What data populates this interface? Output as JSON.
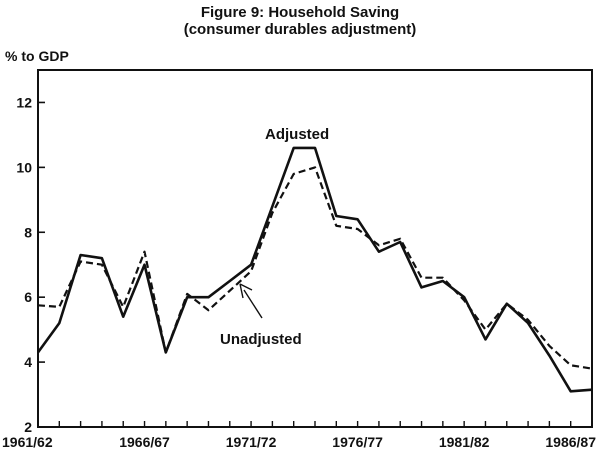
{
  "chart_data": {
    "type": "line",
    "title": "Figure 9: Household Saving",
    "subtitle": "(consumer durables adjustment)",
    "ylabel": "% to GDP",
    "xlabel": "",
    "ylim": [
      2,
      13
    ],
    "yticks": [
      2,
      4,
      6,
      8,
      10,
      12
    ],
    "xtick_labels": [
      "1961/62",
      "1966/67",
      "1971/72",
      "1976/77",
      "1981/82",
      "1986/87"
    ],
    "x": [
      "1961/62",
      "1962/63",
      "1963/64",
      "1964/65",
      "1965/66",
      "1966/67",
      "1967/68",
      "1968/69",
      "1969/70",
      "1970/71",
      "1971/72",
      "1972/73",
      "1973/74",
      "1974/75",
      "1975/76",
      "1976/77",
      "1977/78",
      "1978/79",
      "1979/80",
      "1980/81",
      "1981/82",
      "1982/83",
      "1983/84",
      "1984/85",
      "1985/86",
      "1986/87",
      "1987/88"
    ],
    "series": [
      {
        "name": "Adjusted",
        "style": "solid",
        "values": [
          4.3,
          5.2,
          7.3,
          7.2,
          5.4,
          7.0,
          4.3,
          6.0,
          6.0,
          6.5,
          7.0,
          8.8,
          10.6,
          10.6,
          8.5,
          8.4,
          7.4,
          7.7,
          6.3,
          6.5,
          6.0,
          4.7,
          5.8,
          5.2,
          4.2,
          3.1,
          3.15
        ]
      },
      {
        "name": "Unadjusted",
        "style": "dashed",
        "values": [
          5.75,
          5.7,
          7.1,
          7.0,
          5.7,
          7.4,
          4.3,
          6.1,
          5.6,
          6.2,
          6.8,
          8.6,
          9.8,
          10.0,
          8.2,
          8.1,
          7.6,
          7.8,
          6.6,
          6.6,
          5.9,
          5.0,
          5.8,
          5.3,
          4.5,
          3.9,
          3.8
        ]
      }
    ],
    "annotations": [
      {
        "text": "Adjusted",
        "target": "Adjusted"
      },
      {
        "text": "Unadjusted",
        "target": "Unadjusted"
      }
    ],
    "grid": false,
    "legend": "none"
  }
}
